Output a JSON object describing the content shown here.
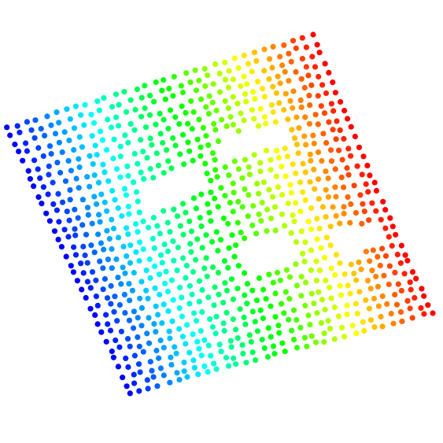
{
  "chart_data": {
    "type": "scatter",
    "title": "",
    "xlabel": "",
    "ylabel": "",
    "grid": false,
    "legend": "none",
    "axes_visible": false,
    "colormap": "jet",
    "color_encodes": "u",
    "u_range": [
      0,
      1
    ],
    "v_range": [
      0,
      1
    ],
    "grid_resolution": [
      32,
      32
    ],
    "holes_uv": [
      {
        "u": [
          0.3,
          0.5
        ],
        "v": [
          0.3,
          0.4
        ]
      },
      {
        "u": [
          0.58,
          0.78
        ],
        "v": [
          0.26,
          0.34
        ]
      },
      {
        "u": [
          0.5,
          0.66
        ],
        "v": [
          0.63,
          0.73
        ]
      },
      {
        "u": [
          0.8,
          0.96
        ],
        "v": [
          0.67,
          0.74
        ]
      }
    ],
    "marker_color_stops": [
      "#0000ff",
      "#00ffff",
      "#00ff00",
      "#ffff00",
      "#ff0000"
    ]
  }
}
